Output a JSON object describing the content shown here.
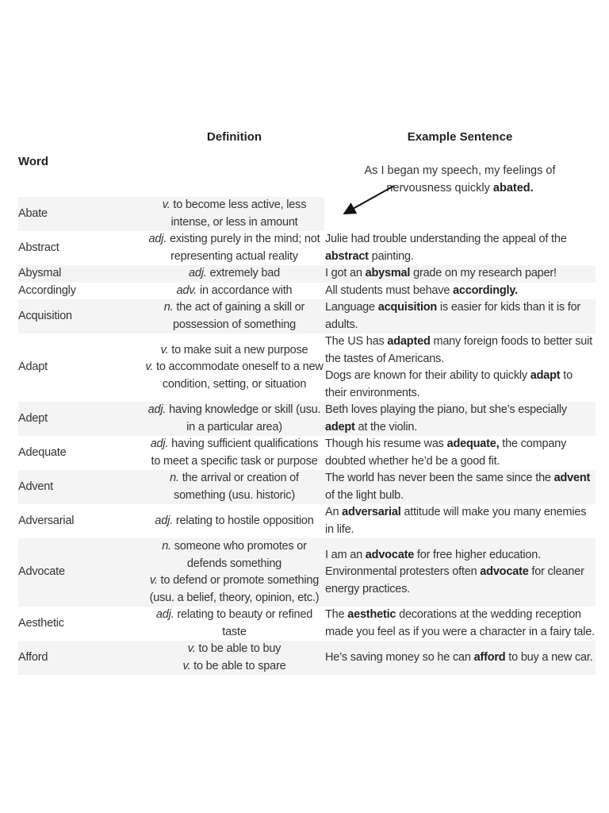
{
  "headers": {
    "word": "Word",
    "definition": "Definition",
    "example": "Example Sentence"
  },
  "abate_example": [
    {
      "t": "As I began my speech, my feelings of nervousness quickly "
    },
    {
      "t": "abated.",
      "b": true
    }
  ],
  "rows": [
    {
      "word": "Abate",
      "shade": "partial",
      "defs": [
        {
          "pos": "v.",
          "text": "to become less active, less intense, or less in amount"
        }
      ],
      "examples": []
    },
    {
      "word": "Abstract",
      "shade": "none",
      "defs": [
        {
          "pos": "adj.",
          "text": "existing purely in the mind; not representing actual reality"
        }
      ],
      "examples": [
        [
          {
            "t": "Julie had trouble understanding the appeal of the "
          },
          {
            "t": "abstract",
            "b": true
          },
          {
            "t": " painting."
          }
        ]
      ]
    },
    {
      "word": "Abysmal",
      "shade": "full",
      "defs": [
        {
          "pos": "adj.",
          "text": "extremely bad"
        }
      ],
      "examples": [
        [
          {
            "t": "I got an "
          },
          {
            "t": "abysmal",
            "b": true
          },
          {
            "t": " grade on my research paper!"
          }
        ]
      ]
    },
    {
      "word": "Accordingly",
      "shade": "none",
      "defs": [
        {
          "pos": "adv.",
          "text": "in accordance with"
        }
      ],
      "examples": [
        [
          {
            "t": "All students must behave "
          },
          {
            "t": "accordingly.",
            "b": true
          }
        ]
      ]
    },
    {
      "word": "Acquisition",
      "shade": "full",
      "defs": [
        {
          "pos": "n.",
          "text": "the act of gaining a skill or possession of something"
        }
      ],
      "examples": [
        [
          {
            "t": "Language "
          },
          {
            "t": "acquisition",
            "b": true
          },
          {
            "t": " is easier for kids than it is for adults."
          }
        ]
      ]
    },
    {
      "word": "Adapt",
      "shade": "none",
      "defs": [
        {
          "pos": "v.",
          "text": "to make suit a new purpose"
        },
        {
          "pos": "v.",
          "text": "to accommodate oneself to a new condition, setting, or situation"
        }
      ],
      "examples": [
        [
          {
            "t": "The US has "
          },
          {
            "t": "adapted",
            "b": true
          },
          {
            "t": " many foreign foods to better suit the tastes of Americans."
          }
        ],
        [
          {
            "t": "Dogs are known for their ability to quickly "
          },
          {
            "t": "adapt",
            "b": true
          },
          {
            "t": " to their environments."
          }
        ]
      ]
    },
    {
      "word": "Adept",
      "shade": "full",
      "defs": [
        {
          "pos": "adj.",
          "text": "having knowledge or skill (usu. in a particular area)"
        }
      ],
      "examples": [
        [
          {
            "t": "Beth loves playing the piano, but she’s especially "
          },
          {
            "t": "adept",
            "b": true
          },
          {
            "t": " at the violin."
          }
        ]
      ]
    },
    {
      "word": "Adequate",
      "shade": "none",
      "defs": [
        {
          "pos": "adj.",
          "text": "having sufficient qualifications to meet a specific task or purpose"
        }
      ],
      "examples": [
        [
          {
            "t": "Though his resume was "
          },
          {
            "t": "adequate,",
            "b": true
          },
          {
            "t": " the company doubted whether he’d be a good fit."
          }
        ]
      ]
    },
    {
      "word": "Advent",
      "shade": "full",
      "defs": [
        {
          "pos": "n.",
          "text": "the arrival or creation of something (usu. historic)"
        }
      ],
      "examples": [
        [
          {
            "t": "The world has never been the same since the "
          },
          {
            "t": "advent",
            "b": true
          },
          {
            "t": " of the light bulb."
          }
        ]
      ]
    },
    {
      "word": "Adversarial",
      "shade": "none",
      "defs": [
        {
          "pos": "adj.",
          "text": "relating to hostile opposition"
        }
      ],
      "examples": [
        [
          {
            "t": "An "
          },
          {
            "t": "adversarial",
            "b": true
          },
          {
            "t": " attitude will make you many enemies in life."
          }
        ]
      ]
    },
    {
      "word": "Advocate",
      "shade": "full",
      "defs": [
        {
          "pos": "n.",
          "text": "someone who promotes or defends something"
        },
        {
          "pos": "v.",
          "text": "to defend or promote something (usu. a belief, theory, opinion, etc.)"
        }
      ],
      "examples": [
        [
          {
            "t": "I am an "
          },
          {
            "t": "advocate",
            "b": true
          },
          {
            "t": " for free higher education."
          }
        ],
        [
          {
            "t": "Environmental protesters often "
          },
          {
            "t": "advocate",
            "b": true
          },
          {
            "t": " for cleaner energy practices."
          }
        ]
      ]
    },
    {
      "word": "Aesthetic",
      "shade": "none",
      "defs": [
        {
          "pos": "adj.",
          "text": "relating to beauty or refined taste"
        }
      ],
      "examples": [
        [
          {
            "t": "The "
          },
          {
            "t": "aesthetic",
            "b": true
          },
          {
            "t": " decorations at the wedding reception made you feel as if you were a character in a fairy tale."
          }
        ]
      ]
    },
    {
      "word": "Afford",
      "shade": "full",
      "defs": [
        {
          "pos": "v.",
          "text": "to be able to buy"
        },
        {
          "pos": "v.",
          "text": "to be able to spare"
        }
      ],
      "examples": [
        [
          {
            "t": "He’s saving money so he can "
          },
          {
            "t": "afford",
            "b": true
          },
          {
            "t": " to buy a new car."
          }
        ]
      ]
    }
  ]
}
